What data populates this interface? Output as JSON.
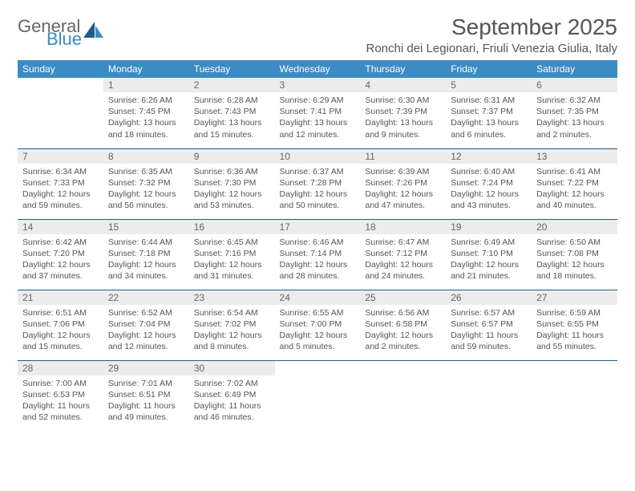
{
  "brand": {
    "part1": "General",
    "part2": "Blue"
  },
  "title": "September 2025",
  "location": "Ronchi dei Legionari, Friuli Venezia Giulia, Italy",
  "colors": {
    "header_bg": "#3b8bc4",
    "header_text": "#ffffff",
    "daynum_bg": "#ececec",
    "cell_border": "#1f5d8a",
    "body_text": "#555555",
    "logo_gray": "#666666",
    "logo_blue": "#3b8bc4"
  },
  "typography": {
    "title_fontsize": 28,
    "location_fontsize": 15,
    "weekday_fontsize": 12,
    "daynum_fontsize": 12,
    "body_fontsize": 10.5
  },
  "weekdays": [
    "Sunday",
    "Monday",
    "Tuesday",
    "Wednesday",
    "Thursday",
    "Friday",
    "Saturday"
  ],
  "weeks": [
    [
      {
        "n": "",
        "sr": "",
        "ss": "",
        "dl": "",
        "empty": true
      },
      {
        "n": "1",
        "sr": "Sunrise: 6:26 AM",
        "ss": "Sunset: 7:45 PM",
        "dl": "Daylight: 13 hours and 18 minutes."
      },
      {
        "n": "2",
        "sr": "Sunrise: 6:28 AM",
        "ss": "Sunset: 7:43 PM",
        "dl": "Daylight: 13 hours and 15 minutes."
      },
      {
        "n": "3",
        "sr": "Sunrise: 6:29 AM",
        "ss": "Sunset: 7:41 PM",
        "dl": "Daylight: 13 hours and 12 minutes."
      },
      {
        "n": "4",
        "sr": "Sunrise: 6:30 AM",
        "ss": "Sunset: 7:39 PM",
        "dl": "Daylight: 13 hours and 9 minutes."
      },
      {
        "n": "5",
        "sr": "Sunrise: 6:31 AM",
        "ss": "Sunset: 7:37 PM",
        "dl": "Daylight: 13 hours and 6 minutes."
      },
      {
        "n": "6",
        "sr": "Sunrise: 6:32 AM",
        "ss": "Sunset: 7:35 PM",
        "dl": "Daylight: 13 hours and 2 minutes."
      }
    ],
    [
      {
        "n": "7",
        "sr": "Sunrise: 6:34 AM",
        "ss": "Sunset: 7:33 PM",
        "dl": "Daylight: 12 hours and 59 minutes."
      },
      {
        "n": "8",
        "sr": "Sunrise: 6:35 AM",
        "ss": "Sunset: 7:32 PM",
        "dl": "Daylight: 12 hours and 56 minutes."
      },
      {
        "n": "9",
        "sr": "Sunrise: 6:36 AM",
        "ss": "Sunset: 7:30 PM",
        "dl": "Daylight: 12 hours and 53 minutes."
      },
      {
        "n": "10",
        "sr": "Sunrise: 6:37 AM",
        "ss": "Sunset: 7:28 PM",
        "dl": "Daylight: 12 hours and 50 minutes."
      },
      {
        "n": "11",
        "sr": "Sunrise: 6:39 AM",
        "ss": "Sunset: 7:26 PM",
        "dl": "Daylight: 12 hours and 47 minutes."
      },
      {
        "n": "12",
        "sr": "Sunrise: 6:40 AM",
        "ss": "Sunset: 7:24 PM",
        "dl": "Daylight: 12 hours and 43 minutes."
      },
      {
        "n": "13",
        "sr": "Sunrise: 6:41 AM",
        "ss": "Sunset: 7:22 PM",
        "dl": "Daylight: 12 hours and 40 minutes."
      }
    ],
    [
      {
        "n": "14",
        "sr": "Sunrise: 6:42 AM",
        "ss": "Sunset: 7:20 PM",
        "dl": "Daylight: 12 hours and 37 minutes."
      },
      {
        "n": "15",
        "sr": "Sunrise: 6:44 AM",
        "ss": "Sunset: 7:18 PM",
        "dl": "Daylight: 12 hours and 34 minutes."
      },
      {
        "n": "16",
        "sr": "Sunrise: 6:45 AM",
        "ss": "Sunset: 7:16 PM",
        "dl": "Daylight: 12 hours and 31 minutes."
      },
      {
        "n": "17",
        "sr": "Sunrise: 6:46 AM",
        "ss": "Sunset: 7:14 PM",
        "dl": "Daylight: 12 hours and 28 minutes."
      },
      {
        "n": "18",
        "sr": "Sunrise: 6:47 AM",
        "ss": "Sunset: 7:12 PM",
        "dl": "Daylight: 12 hours and 24 minutes."
      },
      {
        "n": "19",
        "sr": "Sunrise: 6:49 AM",
        "ss": "Sunset: 7:10 PM",
        "dl": "Daylight: 12 hours and 21 minutes."
      },
      {
        "n": "20",
        "sr": "Sunrise: 6:50 AM",
        "ss": "Sunset: 7:08 PM",
        "dl": "Daylight: 12 hours and 18 minutes."
      }
    ],
    [
      {
        "n": "21",
        "sr": "Sunrise: 6:51 AM",
        "ss": "Sunset: 7:06 PM",
        "dl": "Daylight: 12 hours and 15 minutes."
      },
      {
        "n": "22",
        "sr": "Sunrise: 6:52 AM",
        "ss": "Sunset: 7:04 PM",
        "dl": "Daylight: 12 hours and 12 minutes."
      },
      {
        "n": "23",
        "sr": "Sunrise: 6:54 AM",
        "ss": "Sunset: 7:02 PM",
        "dl": "Daylight: 12 hours and 8 minutes."
      },
      {
        "n": "24",
        "sr": "Sunrise: 6:55 AM",
        "ss": "Sunset: 7:00 PM",
        "dl": "Daylight: 12 hours and 5 minutes."
      },
      {
        "n": "25",
        "sr": "Sunrise: 6:56 AM",
        "ss": "Sunset: 6:58 PM",
        "dl": "Daylight: 12 hours and 2 minutes."
      },
      {
        "n": "26",
        "sr": "Sunrise: 6:57 AM",
        "ss": "Sunset: 6:57 PM",
        "dl": "Daylight: 11 hours and 59 minutes."
      },
      {
        "n": "27",
        "sr": "Sunrise: 6:59 AM",
        "ss": "Sunset: 6:55 PM",
        "dl": "Daylight: 11 hours and 55 minutes."
      }
    ],
    [
      {
        "n": "28",
        "sr": "Sunrise: 7:00 AM",
        "ss": "Sunset: 6:53 PM",
        "dl": "Daylight: 11 hours and 52 minutes."
      },
      {
        "n": "29",
        "sr": "Sunrise: 7:01 AM",
        "ss": "Sunset: 6:51 PM",
        "dl": "Daylight: 11 hours and 49 minutes."
      },
      {
        "n": "30",
        "sr": "Sunrise: 7:02 AM",
        "ss": "Sunset: 6:49 PM",
        "dl": "Daylight: 11 hours and 46 minutes."
      },
      {
        "n": "",
        "sr": "",
        "ss": "",
        "dl": "",
        "empty": true
      },
      {
        "n": "",
        "sr": "",
        "ss": "",
        "dl": "",
        "empty": true
      },
      {
        "n": "",
        "sr": "",
        "ss": "",
        "dl": "",
        "empty": true
      },
      {
        "n": "",
        "sr": "",
        "ss": "",
        "dl": "",
        "empty": true
      }
    ]
  ]
}
